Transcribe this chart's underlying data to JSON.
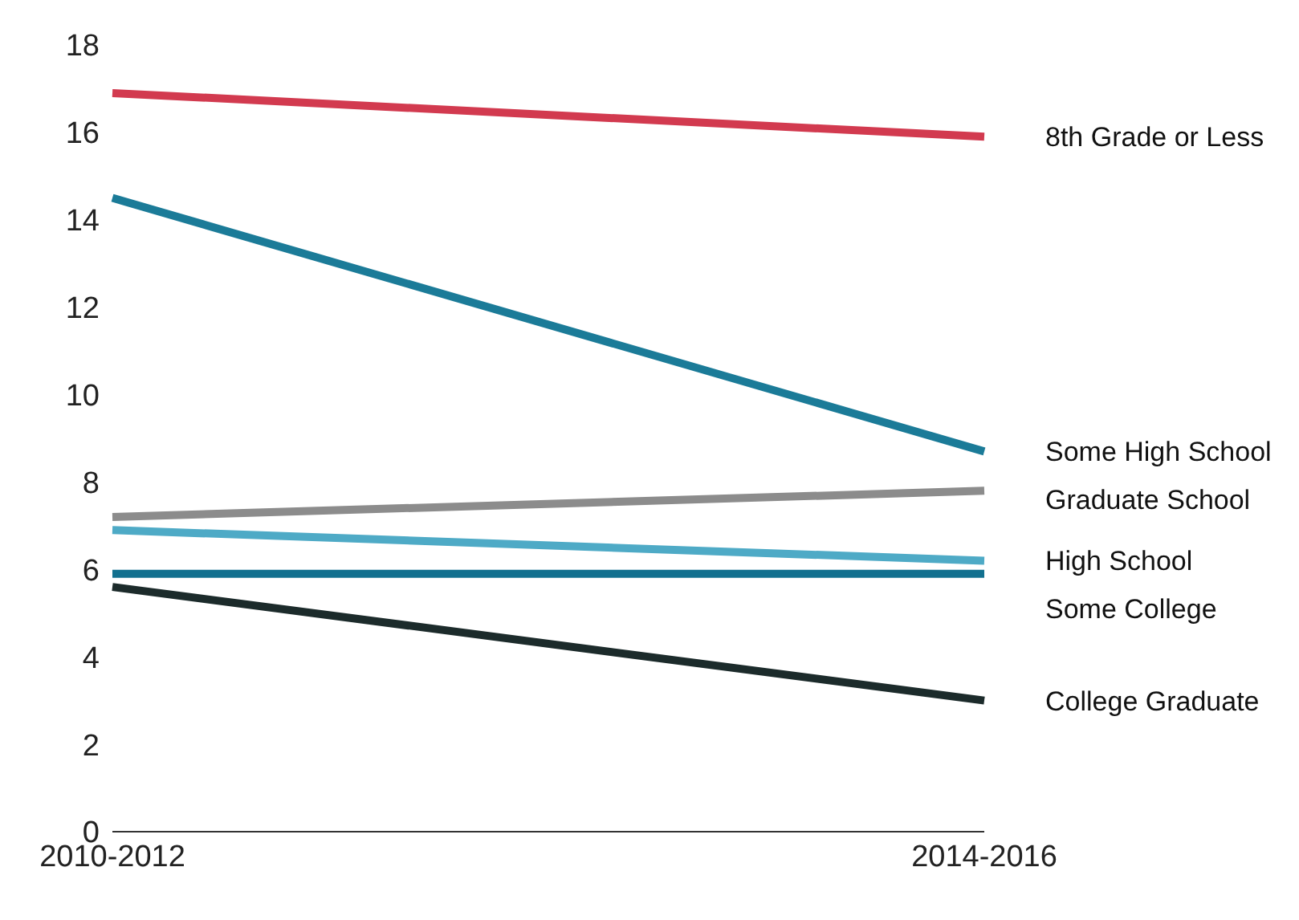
{
  "chart_data": {
    "type": "line",
    "categories": [
      "2010-2012",
      "2014-2016"
    ],
    "ylim": [
      0,
      18
    ],
    "yticks": [
      0,
      2,
      4,
      6,
      8,
      10,
      12,
      14,
      16,
      18
    ],
    "grid": false,
    "legend": false,
    "marker": "none",
    "line_style": "solid",
    "series": [
      {
        "name": "8th Grade or Less",
        "color": "#d23a4f",
        "values": [
          16.9,
          15.9
        ]
      },
      {
        "name": "Some High School",
        "color": "#1b7b98",
        "values": [
          14.5,
          8.7
        ]
      },
      {
        "name": "Graduate School",
        "color": "#8c8c8c",
        "values": [
          7.2,
          7.8
        ]
      },
      {
        "name": "High School",
        "color": "#4eaac6",
        "values": [
          6.9,
          6.2
        ]
      },
      {
        "name": "Some College",
        "color": "#12708f",
        "values": [
          5.9,
          5.9
        ]
      },
      {
        "name": "College Graduate",
        "color": "#1c2b2b",
        "values": [
          5.6,
          3.0
        ]
      }
    ]
  }
}
